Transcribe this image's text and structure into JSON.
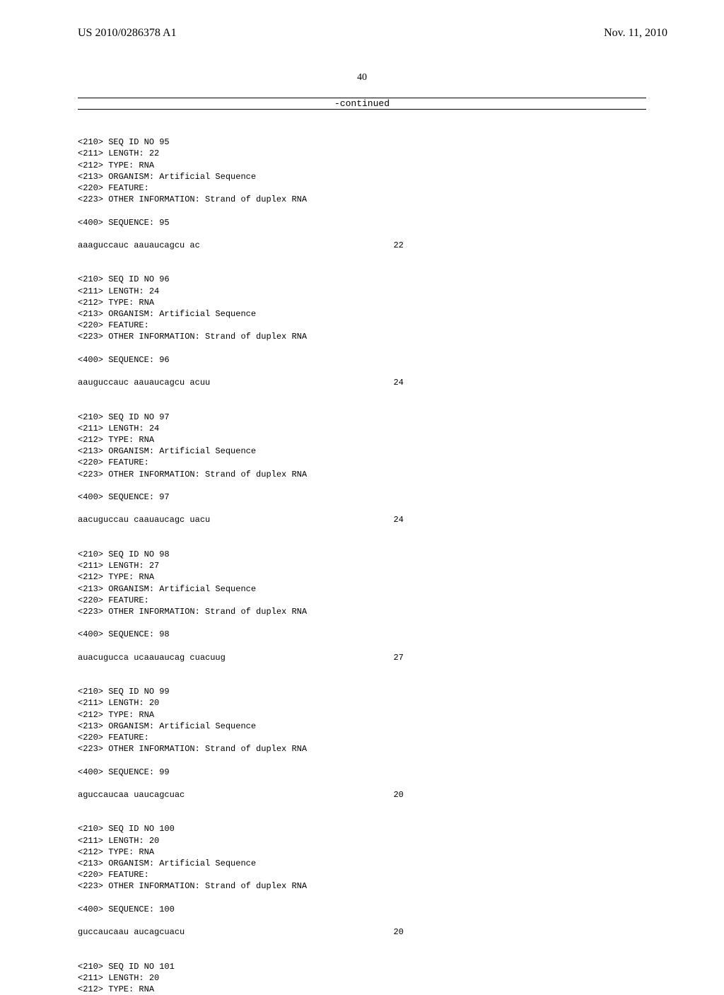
{
  "header": {
    "pub_number": "US 2010/0286378 A1",
    "pub_date": "Nov. 11, 2010"
  },
  "page_number": "40",
  "continued_label": "-continued",
  "entries": [
    {
      "seq_id": "<210> SEQ ID NO 95",
      "length": "<211> LENGTH: 22",
      "type": "<212> TYPE: RNA",
      "organism": "<213> ORGANISM: Artificial Sequence",
      "feature": "<220> FEATURE:",
      "other": "<223> OTHER INFORMATION: Strand of duplex RNA",
      "seq_label": "<400> SEQUENCE: 95",
      "sequence": "aaaguccauc aauaucagcu ac",
      "seq_len": "22"
    },
    {
      "seq_id": "<210> SEQ ID NO 96",
      "length": "<211> LENGTH: 24",
      "type": "<212> TYPE: RNA",
      "organism": "<213> ORGANISM: Artificial Sequence",
      "feature": "<220> FEATURE:",
      "other": "<223> OTHER INFORMATION: Strand of duplex RNA",
      "seq_label": "<400> SEQUENCE: 96",
      "sequence": "aauguccauc aauaucagcu acuu",
      "seq_len": "24"
    },
    {
      "seq_id": "<210> SEQ ID NO 97",
      "length": "<211> LENGTH: 24",
      "type": "<212> TYPE: RNA",
      "organism": "<213> ORGANISM: Artificial Sequence",
      "feature": "<220> FEATURE:",
      "other": "<223> OTHER INFORMATION: Strand of duplex RNA",
      "seq_label": "<400> SEQUENCE: 97",
      "sequence": "aacuguccau caauaucagc uacu",
      "seq_len": "24"
    },
    {
      "seq_id": "<210> SEQ ID NO 98",
      "length": "<211> LENGTH: 27",
      "type": "<212> TYPE: RNA",
      "organism": "<213> ORGANISM: Artificial Sequence",
      "feature": "<220> FEATURE:",
      "other": "<223> OTHER INFORMATION: Strand of duplex RNA",
      "seq_label": "<400> SEQUENCE: 98",
      "sequence": "auacugucca ucaauaucag cuacuug",
      "seq_len": "27"
    },
    {
      "seq_id": "<210> SEQ ID NO 99",
      "length": "<211> LENGTH: 20",
      "type": "<212> TYPE: RNA",
      "organism": "<213> ORGANISM: Artificial Sequence",
      "feature": "<220> FEATURE:",
      "other": "<223> OTHER INFORMATION: Strand of duplex RNA",
      "seq_label": "<400> SEQUENCE: 99",
      "sequence": "aguccaucaa uaucagcuac",
      "seq_len": "20"
    },
    {
      "seq_id": "<210> SEQ ID NO 100",
      "length": "<211> LENGTH: 20",
      "type": "<212> TYPE: RNA",
      "organism": "<213> ORGANISM: Artificial Sequence",
      "feature": "<220> FEATURE:",
      "other": "<223> OTHER INFORMATION: Strand of duplex RNA",
      "seq_label": "<400> SEQUENCE: 100",
      "sequence": "guccaucaau aucagcuacu",
      "seq_len": "20"
    }
  ],
  "partial_entry": {
    "seq_id": "<210> SEQ ID NO 101",
    "length": "<211> LENGTH: 20",
    "type": "<212> TYPE: RNA"
  }
}
